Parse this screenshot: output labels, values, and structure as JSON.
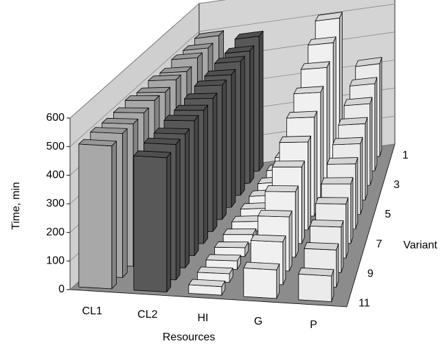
{
  "chart_data": {
    "type": "bar3d",
    "x_label": "Resources",
    "y_label": "Time, min",
    "z_label": "Variant",
    "categories": [
      "CL1",
      "CL2",
      "HI",
      "G",
      "P"
    ],
    "z_categories": [
      1,
      null,
      3,
      null,
      5,
      null,
      7,
      null,
      9,
      null,
      11
    ],
    "colors": [
      "#a8a8a8",
      "#585858",
      "#f0f0f0",
      "#f0f0f0",
      "#ebebeb"
    ],
    "values": [
      [
        500,
        495,
        500,
        490,
        500,
        495,
        505,
        500,
        500,
        505,
        500
      ],
      [
        480,
        470,
        475,
        470,
        475,
        470,
        470,
        475,
        470,
        475,
        470
      ],
      [
        40,
        38,
        36,
        35,
        34,
        33,
        32,
        31,
        30,
        30,
        30
      ],
      [
        510,
        470,
        430,
        390,
        350,
        310,
        270,
        230,
        190,
        150,
        100
      ],
      [
        330,
        310,
        290,
        270,
        250,
        230,
        210,
        190,
        160,
        130,
        90
      ]
    ],
    "ylim": [
      0,
      600
    ],
    "yticks": [
      0,
      100,
      200,
      300,
      400,
      500,
      600
    ],
    "grid": true
  }
}
